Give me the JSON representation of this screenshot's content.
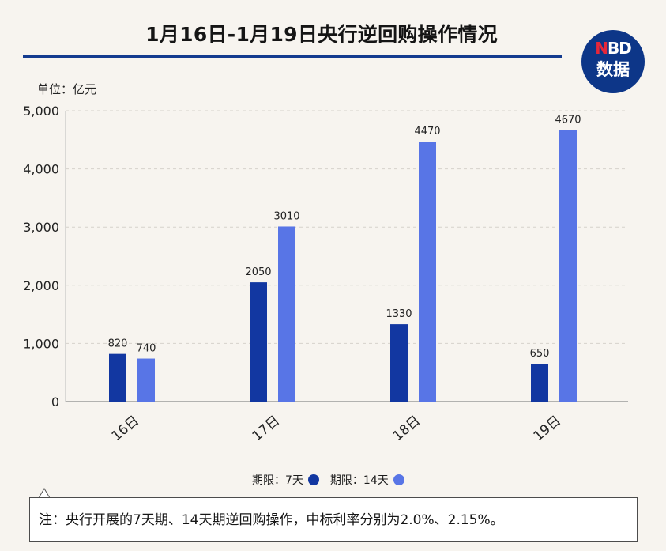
{
  "header": {
    "title": "1月16日-1月19日央行逆回购操作情况"
  },
  "logo": {
    "top_text": "NBD",
    "bottom_text": "数据",
    "top_n": "N",
    "top_rest": "BD",
    "background": "#0d3688",
    "accent": "#e6273a"
  },
  "unit_label": "单位：亿元",
  "legend": {
    "items": [
      {
        "label": "期限：7天",
        "color": "#1237a1"
      },
      {
        "label": "期限：14天",
        "color": "#5875e6"
      }
    ]
  },
  "note": "注：央行开展的7天期、14天期逆回购操作，中标利率分别为2.0%、2.15%。",
  "chart_data": {
    "type": "bar",
    "categories": [
      "16日",
      "17日",
      "18日",
      "19日"
    ],
    "series": [
      {
        "name": "期限：7天",
        "values": [
          820,
          2050,
          1330,
          650
        ],
        "color": "#1237a1"
      },
      {
        "name": "期限：14天",
        "values": [
          740,
          3010,
          4470,
          4670
        ],
        "color": "#5875e6"
      }
    ],
    "title": "1月16日-1月19日央行逆回购操作情况",
    "ylabel": "单位：亿元",
    "ylim": [
      0,
      5000
    ],
    "yticks": [
      "0",
      "1,000",
      "2,000",
      "3,000",
      "4,000",
      "5,000"
    ],
    "grid": true,
    "legend_position": "bottom-center",
    "data_labels": [
      [
        "820",
        "2050",
        "1330",
        "650"
      ],
      [
        "740",
        "3010",
        "4470",
        "4670"
      ]
    ]
  }
}
